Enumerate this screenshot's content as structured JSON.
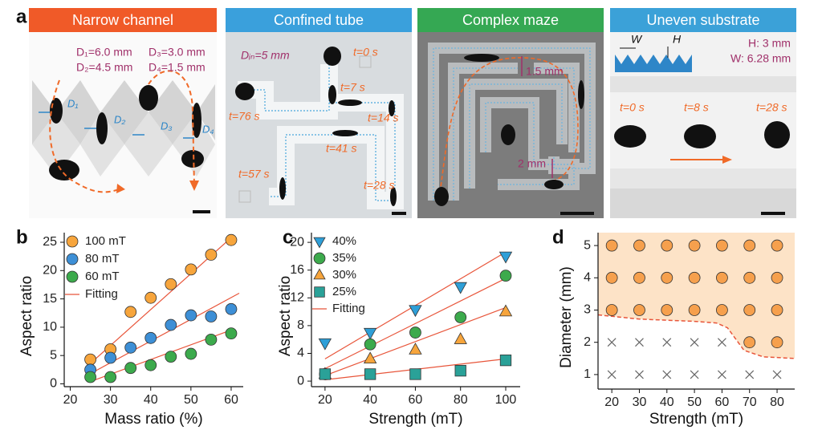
{
  "panels": [
    {
      "label": "a",
      "title": "Narrow channel",
      "annotations": [
        "D₁=6.0 mm",
        "D₃=3.0 mm",
        "D₂=4.5 mm",
        "D₄=1.5 mm",
        "D₁",
        "D₂",
        "D₃",
        "D₄"
      ]
    },
    {
      "title": "Confined tube",
      "annotations": [
        "Dᵢₙ=5 mm",
        "t=0 s",
        "t=7 s",
        "t=14 s",
        "t=41 s",
        "t=28 s",
        "t=57 s",
        "t=76 s"
      ]
    },
    {
      "title": "Complex maze",
      "annotations": [
        "1.5 mm",
        "2 mm"
      ]
    },
    {
      "title": "Uneven substrate",
      "annotations": [
        "W",
        "H",
        "H: 3 mm",
        "W: 6.28 mm",
        "t=0 s",
        "t=8 s",
        "t=28 s"
      ]
    }
  ],
  "chart_data": [
    {
      "type": "scatter",
      "panel_label": "b",
      "xlabel": "Mass ratio (%)",
      "ylabel": "Aspect ratio",
      "x": [
        25,
        30,
        35,
        40,
        45,
        50,
        55,
        60
      ],
      "xlim": [
        18.5,
        63
      ],
      "ylim": [
        -0.5,
        26.7
      ],
      "xticks": [
        20,
        30,
        40,
        50,
        60
      ],
      "yticks": [
        0,
        5,
        10,
        15,
        20,
        25
      ],
      "legend": "upper left",
      "series": [
        {
          "name": "100 mT",
          "color": "#f7a53c",
          "marker": "circle",
          "values": [
            4.3,
            6.1,
            12.7,
            15.2,
            17.6,
            20.2,
            22.8,
            25.4
          ]
        },
        {
          "name": "80 mT",
          "color": "#3d8fd6",
          "marker": "circle",
          "values": [
            2.5,
            4.6,
            6.4,
            8.1,
            10.4,
            12.1,
            11.9,
            13.2
          ]
        },
        {
          "name": "60 mT",
          "color": "#3caa4c",
          "marker": "circle",
          "values": [
            1.2,
            1.2,
            2.8,
            3.3,
            4.8,
            5.3,
            7.8,
            8.9
          ]
        }
      ],
      "fit": {
        "name": "Fitting",
        "color": "#e8553a",
        "lines": [
          {
            "x": [
              25,
              60
            ],
            "values": [
              3.6,
              25.8
            ]
          },
          {
            "x": [
              25,
              62
            ],
            "values": [
              1.8,
              16
            ]
          },
          {
            "x": [
              25,
              60
            ],
            "values": [
              0.4,
              9.5
            ]
          }
        ]
      }
    },
    {
      "type": "scatter",
      "panel_label": "c",
      "xlabel": "Strength (mT)",
      "ylabel": "Aspect ratio",
      "x": [
        20,
        40,
        60,
        80,
        100
      ],
      "xlim": [
        14,
        106.4
      ],
      "ylim": [
        -0.8,
        21.4
      ],
      "xticks": [
        20,
        40,
        60,
        80,
        100
      ],
      "yticks": [
        0,
        4,
        8,
        12,
        16,
        20
      ],
      "legend": "upper left",
      "series": [
        {
          "name": "40%",
          "color": "#2e9fd8",
          "marker": "triangle-down",
          "values": [
            5.5,
            7,
            10.3,
            13.6,
            18
          ]
        },
        {
          "name": "35%",
          "color": "#3caa4c",
          "marker": "circle",
          "values": [
            1,
            5.3,
            7,
            9.2,
            15.2
          ]
        },
        {
          "name": "30%",
          "color": "#f7a53c",
          "marker": "triangle-up",
          "values": [
            1,
            3.2,
            4.5,
            6,
            10
          ]
        },
        {
          "name": "25%",
          "color": "#2aa198",
          "marker": "square",
          "values": [
            1,
            1,
            1,
            1.5,
            3
          ]
        }
      ],
      "fit": {
        "name": "Fitting",
        "color": "#e8553a",
        "lines": [
          {
            "x": [
              20,
              100
            ],
            "values": [
              3.2,
              18.6
            ]
          },
          {
            "x": [
              20,
              100
            ],
            "values": [
              1.8,
              14.8
            ]
          },
          {
            "x": [
              20,
              100
            ],
            "values": [
              0.8,
              10.6
            ]
          },
          {
            "x": [
              20,
              100
            ],
            "values": [
              0.2,
              3.2
            ]
          }
        ]
      }
    },
    {
      "type": "scatter",
      "panel_label": "d",
      "xlabel": "Strength (mT)",
      "ylabel": "Diameter (mm)",
      "xlim": [
        15,
        86.4
      ],
      "ylim": [
        0.55,
        5.4
      ],
      "xticks": [
        20,
        30,
        40,
        50,
        60,
        70,
        80
      ],
      "yticks": [
        1,
        2,
        3,
        4,
        5
      ],
      "series": [
        {
          "color": "#f6a04d",
          "marker": "circle",
          "x": [
            20,
            30,
            40,
            50,
            60,
            70,
            80,
            20,
            30,
            40,
            50,
            60,
            70,
            80,
            20,
            30,
            40,
            50,
            60,
            70,
            80,
            70,
            80
          ],
          "values": [
            5,
            5,
            5,
            5,
            5,
            5,
            5,
            4,
            4,
            4,
            4,
            4,
            4,
            4,
            3,
            3,
            3,
            3,
            3,
            3,
            3,
            2,
            2
          ]
        },
        {
          "color": "#666666",
          "marker": "cross",
          "x": [
            20,
            30,
            40,
            50,
            60,
            70,
            80,
            20,
            30,
            40,
            50,
            60
          ],
          "values": [
            1,
            1,
            1,
            1,
            1,
            1,
            1,
            2,
            2,
            2,
            2,
            2
          ]
        }
      ],
      "boundary": {
        "color": "#e8553a",
        "fill": "#fde3c7",
        "x": [
          15,
          30,
          50,
          58,
          62,
          65,
          68,
          75,
          86.4
        ],
        "values": [
          2.85,
          2.72,
          2.65,
          2.6,
          2.45,
          2.1,
          1.75,
          1.55,
          1.5
        ]
      }
    }
  ]
}
